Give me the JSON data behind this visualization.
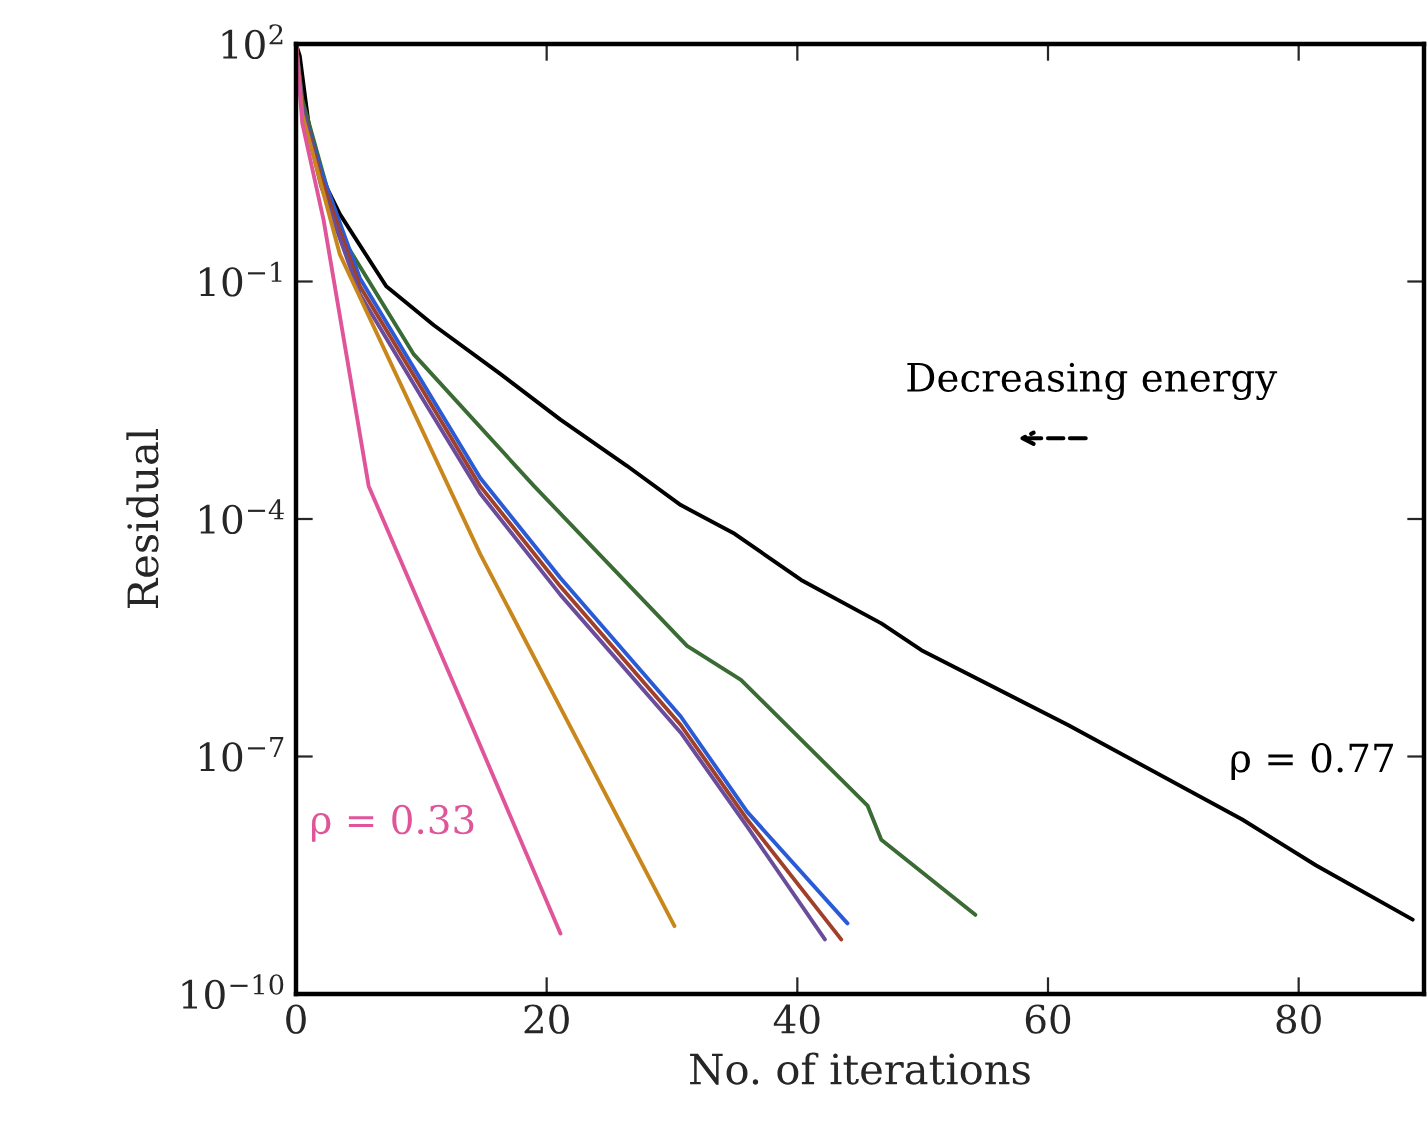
{
  "chart_data": {
    "type": "line",
    "xlabel": "No. of iterations",
    "ylabel": "Residual",
    "log": "y",
    "grid": false,
    "marker": "none",
    "line_style": "solid",
    "xlim": [
      0,
      90
    ],
    "xticks": [
      0,
      20,
      40,
      60,
      80
    ],
    "ylim": [
      1e-10,
      100
    ],
    "yticks": [
      {
        "value": 1e-10,
        "label": "10$^{−10}$"
      },
      {
        "value": 1e-07,
        "label": "10$^{−7}$"
      },
      {
        "value": 0.0001,
        "label": "10$^{−4}$"
      },
      {
        "value": 0.1,
        "label": "10$^{−1}$"
      },
      {
        "value": 100,
        "label": "10$^{2}$"
      }
    ],
    "series": [
      {
        "color": "#000000",
        "x": [
          0,
          0.3,
          1,
          1.9,
          3.5,
          7.2,
          11,
          16.3,
          21.1,
          26.4,
          30.7,
          35,
          40.3,
          46.7,
          49.9,
          61.6,
          75.5,
          81.4,
          89.1
        ],
        "values": [
          100,
          71,
          10,
          2.3,
          0.71,
          0.087,
          0.028,
          0.0068,
          0.0018,
          0.00047,
          0.00015,
          6.5e-05,
          1.7e-05,
          4.8e-06,
          2.2e-06,
          2.5e-07,
          1.6e-08,
          4.2e-09,
          8.7e-10
        ]
      },
      {
        "color": "#3a6b35",
        "x": [
          0,
          0.5,
          3.5,
          9.4,
          19,
          31.2,
          35.5,
          45.6,
          46.7,
          54.2
        ],
        "values": [
          100,
          20,
          0.4,
          0.012,
          0.00026,
          2.5e-06,
          9.3e-07,
          2.4e-08,
          8.9e-09,
          1e-09
        ]
      },
      {
        "color": "#2a5bd7",
        "x": [
          0,
          0.5,
          2,
          5.1,
          10,
          14.7,
          21.1,
          30.7,
          36,
          44
        ],
        "values": [
          100,
          16,
          2.5,
          0.11,
          0.0056,
          0.00033,
          1.8e-05,
          3.2e-07,
          2e-08,
          7.8e-10
        ]
      },
      {
        "color": "#a0402a",
        "x": [
          0,
          0.5,
          2,
          5.1,
          10,
          14.7,
          21.1,
          30.7,
          36,
          43.5
        ],
        "values": [
          100,
          16,
          2.0,
          0.087,
          0.0045,
          0.00026,
          1.4e-05,
          2.5e-07,
          1.6e-08,
          4.9e-10
        ]
      },
      {
        "color": "#6a4c9c",
        "x": [
          0,
          0.5,
          2,
          5.1,
          10,
          14.7,
          21.1,
          30.7,
          36,
          42.2
        ],
        "values": [
          100,
          16,
          1.6,
          0.069,
          0.0035,
          0.00021,
          1.1e-05,
          2e-07,
          1.3e-08,
          4.9e-10
        ]
      },
      {
        "color": "#c8861b",
        "x": [
          0,
          0.5,
          3.5,
          14.7,
          22,
          30.2
        ],
        "values": [
          100,
          13,
          0.22,
          3.6e-05,
          2.2e-07,
          7.2e-10
        ]
      },
      {
        "color": "#e0559a",
        "x": [
          0,
          0.5,
          2.2,
          5.8,
          14,
          21.1
        ],
        "values": [
          100,
          10,
          0.6,
          0.00026,
          2.5e-07,
          5.8e-10
        ]
      }
    ],
    "annotations": [
      "ρ = 0.77",
      "ρ = 0.33",
      "Decreasing energy"
    ]
  }
}
